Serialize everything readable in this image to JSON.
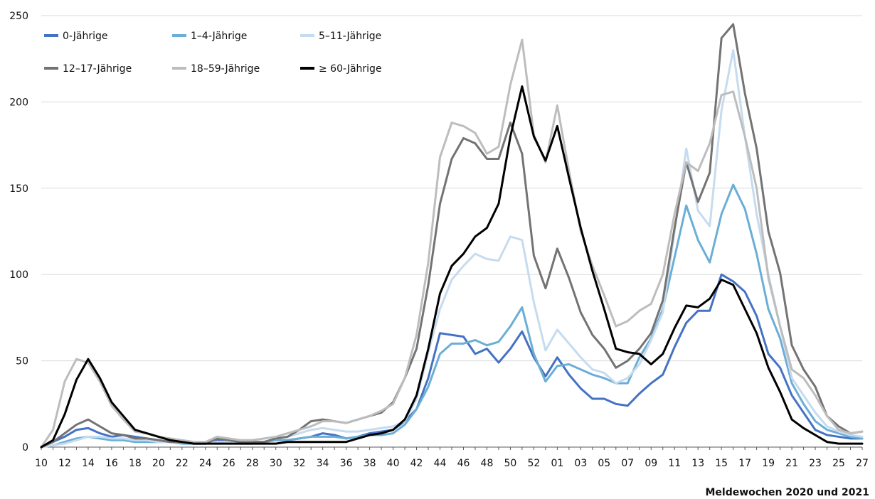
{
  "chart_data": {
    "type": "line",
    "xlabel": "Meldewochen 2020 und 2021",
    "ylabel": "",
    "ylim": [
      0,
      250
    ],
    "yticks": [
      0,
      50,
      100,
      150,
      200,
      250
    ],
    "grid": "horizontal",
    "legend_placement": "top-left",
    "x": [
      "10",
      "11",
      "12",
      "13",
      "14",
      "15",
      "16",
      "17",
      "18",
      "19",
      "20",
      "21",
      "22",
      "23",
      "24",
      "25",
      "26",
      "27",
      "28",
      "29",
      "30",
      "31",
      "32",
      "33",
      "34",
      "35",
      "36",
      "37",
      "38",
      "39",
      "40",
      "41",
      "42",
      "43",
      "44",
      "45",
      "46",
      "47",
      "48",
      "49",
      "50",
      "51",
      "52",
      "53",
      "01",
      "02",
      "03",
      "04",
      "05",
      "06",
      "07",
      "08",
      "09",
      "10",
      "11",
      "12",
      "13",
      "14",
      "15",
      "16",
      "17",
      "18",
      "19",
      "20",
      "21",
      "22",
      "23",
      "24",
      "25",
      "26",
      "27"
    ],
    "xtick_labels": [
      "10",
      "12",
      "14",
      "16",
      "18",
      "20",
      "22",
      "24",
      "26",
      "28",
      "30",
      "32",
      "34",
      "36",
      "38",
      "40",
      "42",
      "44",
      "46",
      "48",
      "50",
      "52",
      "01",
      "03",
      "05",
      "07",
      "09",
      "11",
      "13",
      "15",
      "17",
      "19",
      "21",
      "23",
      "25",
      "27"
    ],
    "series": [
      {
        "name": "0-Jährige",
        "color": "#4472c4",
        "values": [
          0,
          3,
          6,
          10,
          11,
          8,
          6,
          7,
          6,
          5,
          4,
          3,
          3,
          2,
          2,
          4,
          3,
          3,
          3,
          3,
          4,
          4,
          5,
          6,
          8,
          7,
          5,
          6,
          8,
          9,
          10,
          15,
          22,
          40,
          66,
          65,
          64,
          54,
          57,
          49,
          57,
          67,
          52,
          41,
          52,
          42,
          34,
          28,
          28,
          25,
          24,
          31,
          37,
          42,
          58,
          72,
          79,
          79,
          100,
          96,
          90,
          76,
          54,
          46,
          30,
          20,
          10,
          7,
          6,
          5,
          5
        ]
      },
      {
        "name": "1–4-Jährige",
        "color": "#6baed6",
        "values": [
          0,
          1,
          3,
          5,
          6,
          5,
          4,
          4,
          3,
          3,
          3,
          3,
          2,
          2,
          2,
          3,
          3,
          2,
          2,
          3,
          4,
          4,
          5,
          6,
          6,
          6,
          5,
          6,
          7,
          7,
          8,
          13,
          22,
          35,
          54,
          60,
          60,
          62,
          59,
          61,
          70,
          81,
          54,
          38,
          47,
          48,
          45,
          42,
          40,
          37,
          37,
          52,
          63,
          80,
          110,
          140,
          120,
          107,
          135,
          152,
          138,
          112,
          80,
          63,
          37,
          25,
          15,
          10,
          8,
          6,
          5
        ]
      },
      {
        "name": "5–11-Jährige",
        "color": "#c6dbef",
        "values": [
          0,
          1,
          2,
          4,
          6,
          6,
          5,
          5,
          4,
          4,
          3,
          3,
          3,
          2,
          2,
          3,
          3,
          3,
          3,
          3,
          5,
          6,
          8,
          10,
          11,
          10,
          9,
          9,
          10,
          11,
          12,
          15,
          28,
          55,
          80,
          97,
          105,
          112,
          109,
          108,
          122,
          120,
          84,
          56,
          68,
          60,
          52,
          45,
          43,
          37,
          40,
          48,
          62,
          78,
          125,
          173,
          137,
          128,
          195,
          230,
          180,
          135,
          100,
          70,
          40,
          30,
          20,
          12,
          9,
          7,
          6
        ]
      },
      {
        "name": "12–17-Jährige",
        "color": "#737373",
        "values": [
          0,
          3,
          8,
          13,
          16,
          12,
          8,
          7,
          5,
          5,
          4,
          3,
          3,
          2,
          2,
          5,
          4,
          3,
          3,
          3,
          5,
          6,
          10,
          15,
          16,
          15,
          14,
          16,
          18,
          20,
          26,
          40,
          57,
          94,
          141,
          167,
          179,
          176,
          167,
          167,
          188,
          170,
          111,
          92,
          115,
          98,
          78,
          65,
          57,
          46,
          50,
          57,
          66,
          85,
          127,
          165,
          142,
          159,
          237,
          245,
          205,
          173,
          125,
          101,
          59,
          45,
          35,
          18,
          12,
          8,
          9
        ]
      },
      {
        "name": "18–59-Jährige",
        "color": "#bdbdbd",
        "values": [
          0,
          10,
          38,
          51,
          49,
          38,
          24,
          16,
          9,
          8,
          6,
          5,
          4,
          3,
          3,
          6,
          5,
          4,
          4,
          5,
          6,
          8,
          10,
          12,
          15,
          15,
          14,
          16,
          18,
          21,
          25,
          40,
          65,
          107,
          168,
          188,
          186,
          182,
          170,
          174,
          210,
          236,
          181,
          165,
          198,
          160,
          125,
          105,
          88,
          70,
          73,
          79,
          83,
          100,
          135,
          165,
          160,
          176,
          204,
          206,
          180,
          150,
          98,
          70,
          45,
          40,
          30,
          18,
          10,
          8,
          9
        ]
      },
      {
        "name": "≥ 60-Jährige",
        "color": "#000000",
        "values": [
          0,
          4,
          19,
          39,
          51,
          40,
          26,
          18,
          10,
          8,
          6,
          4,
          3,
          2,
          2,
          2,
          2,
          2,
          2,
          2,
          2,
          3,
          3,
          3,
          3,
          3,
          3,
          5,
          7,
          8,
          10,
          16,
          30,
          57,
          89,
          105,
          112,
          122,
          127,
          141,
          180,
          209,
          180,
          166,
          186,
          156,
          127,
          102,
          80,
          57,
          55,
          54,
          48,
          54,
          69,
          82,
          81,
          86,
          97,
          94,
          80,
          66,
          46,
          32,
          16,
          11,
          7,
          3,
          2,
          2,
          2
        ]
      }
    ]
  }
}
